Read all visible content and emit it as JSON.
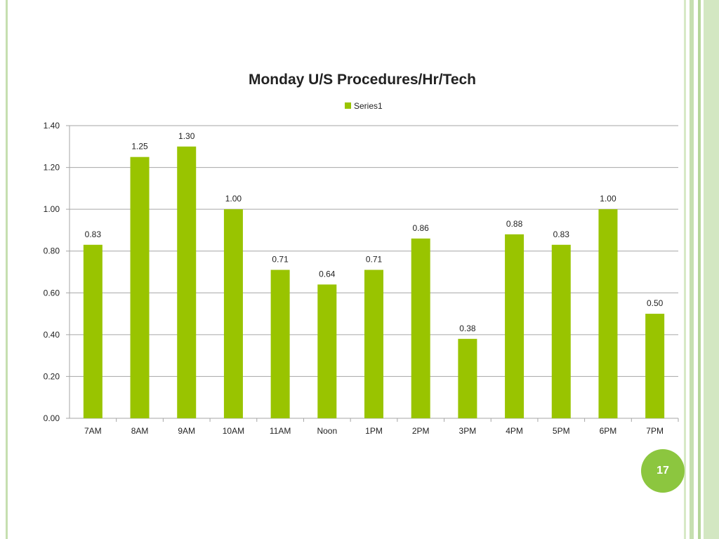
{
  "slide": {
    "page_number": "17"
  },
  "colors": {
    "bar": "#99c400",
    "grid": "#a6a6a6",
    "badge": "#8cc63f",
    "stripe": "#c6dfb0"
  },
  "chart_data": {
    "type": "bar",
    "title": "Monday U/S Procedures/Hr/Tech",
    "categories": [
      "7AM",
      "8AM",
      "9AM",
      "10AM",
      "11AM",
      "Noon",
      "1PM",
      "2PM",
      "3PM",
      "4PM",
      "5PM",
      "6PM",
      "7PM"
    ],
    "series": [
      {
        "name": "Series1",
        "values": [
          0.83,
          1.25,
          1.3,
          1.0,
          0.71,
          0.64,
          0.71,
          0.86,
          0.38,
          0.88,
          0.83,
          1.0,
          0.5
        ]
      }
    ],
    "data_labels": [
      "0.83",
      "1.25",
      "1.30",
      "1.00",
      "0.71",
      "0.64",
      "0.71",
      "0.86",
      "0.38",
      "0.88",
      "0.83",
      "1.00",
      "0.50"
    ],
    "yticks": [
      "0.00",
      "0.20",
      "0.40",
      "0.60",
      "0.80",
      "1.00",
      "1.20",
      "1.40"
    ],
    "ylim": [
      0,
      1.4
    ],
    "grid": true,
    "legend": "top-center"
  }
}
